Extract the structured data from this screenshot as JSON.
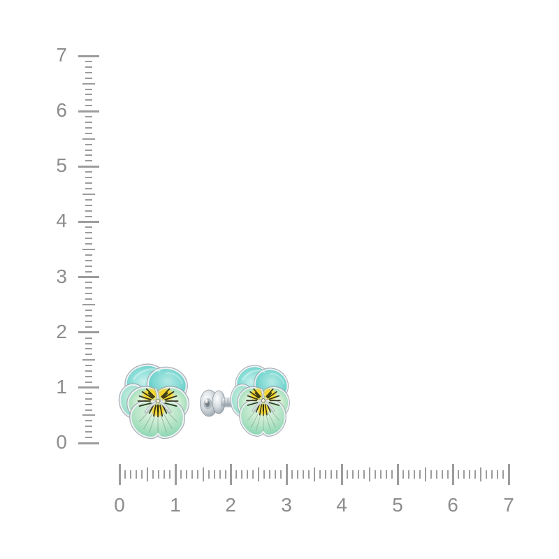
{
  "scene": {
    "background_color": "#ffffff",
    "subject": "pair of pansy-flower stud earrings with turquoise and mint enamel petals, yellow centers and silver settings, shown between centimeter rulers"
  },
  "vertical_ruler": {
    "labels": [
      "7",
      "6",
      "5",
      "4",
      "3",
      "2",
      "1",
      "0"
    ],
    "min": 0,
    "max": 7,
    "minor_ticks_per_unit": 10,
    "tick_color": "#9c9c9c",
    "label_color": "#8d8d8d"
  },
  "horizontal_ruler": {
    "labels": [
      "0",
      "1",
      "2",
      "3",
      "4",
      "5",
      "6",
      "7"
    ],
    "min": 0,
    "max": 7,
    "minor_ticks_per_unit": 10,
    "tick_color": "#9c9c9c",
    "label_color": "#8d8d8d"
  },
  "earrings": {
    "left": {
      "name": "pansy-stud-earring-front-view"
    },
    "right": {
      "name": "pansy-stud-earring-side-view-with-post-and-clasp"
    }
  },
  "palette": {
    "enamel_aqua": "#6fd2cb",
    "enamel_aqua_light": "#b9ebe6",
    "enamel_mint": "#a9e1be",
    "enamel_mint_light": "#eef7e9",
    "enamel_yellow": "#f6d322",
    "flower_dark_markings": "#23260f",
    "vein_green": "#41694a",
    "metal_silver": "#c6ced4",
    "metal_highlight": "#f4f6f7",
    "metal_shadow": "#8e979e"
  }
}
